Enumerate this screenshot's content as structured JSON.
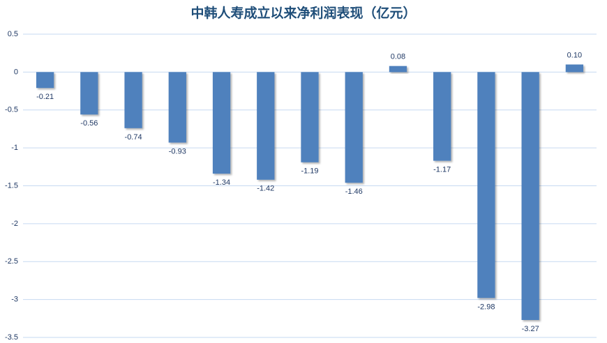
{
  "chart_data": {
    "type": "bar",
    "title": "中韩人寿成立以来净利润表现（亿元）",
    "categories": [
      null,
      null,
      null,
      null,
      null,
      null,
      null,
      null,
      null,
      null,
      null,
      null,
      null
    ],
    "values": [
      -0.21,
      -0.56,
      -0.74,
      -0.93,
      -1.34,
      -1.42,
      -1.19,
      -1.46,
      0.08,
      -1.17,
      -2.98,
      -3.27,
      0.1
    ],
    "value_labels": [
      "-0.21",
      "-0.56",
      "-0.74",
      "-0.93",
      "-1.34",
      "-1.42",
      "-1.19",
      "-1.46",
      "0.08",
      "-1.17",
      "-2.98",
      "-3.27",
      "0.10"
    ],
    "color": "#4f81bd",
    "ylim": [
      -3.5,
      0.5
    ],
    "yticks": [
      0.5,
      0,
      -0.5,
      -1,
      -1.5,
      -2,
      -2.5,
      -3,
      -3.5
    ],
    "grid": true
  }
}
